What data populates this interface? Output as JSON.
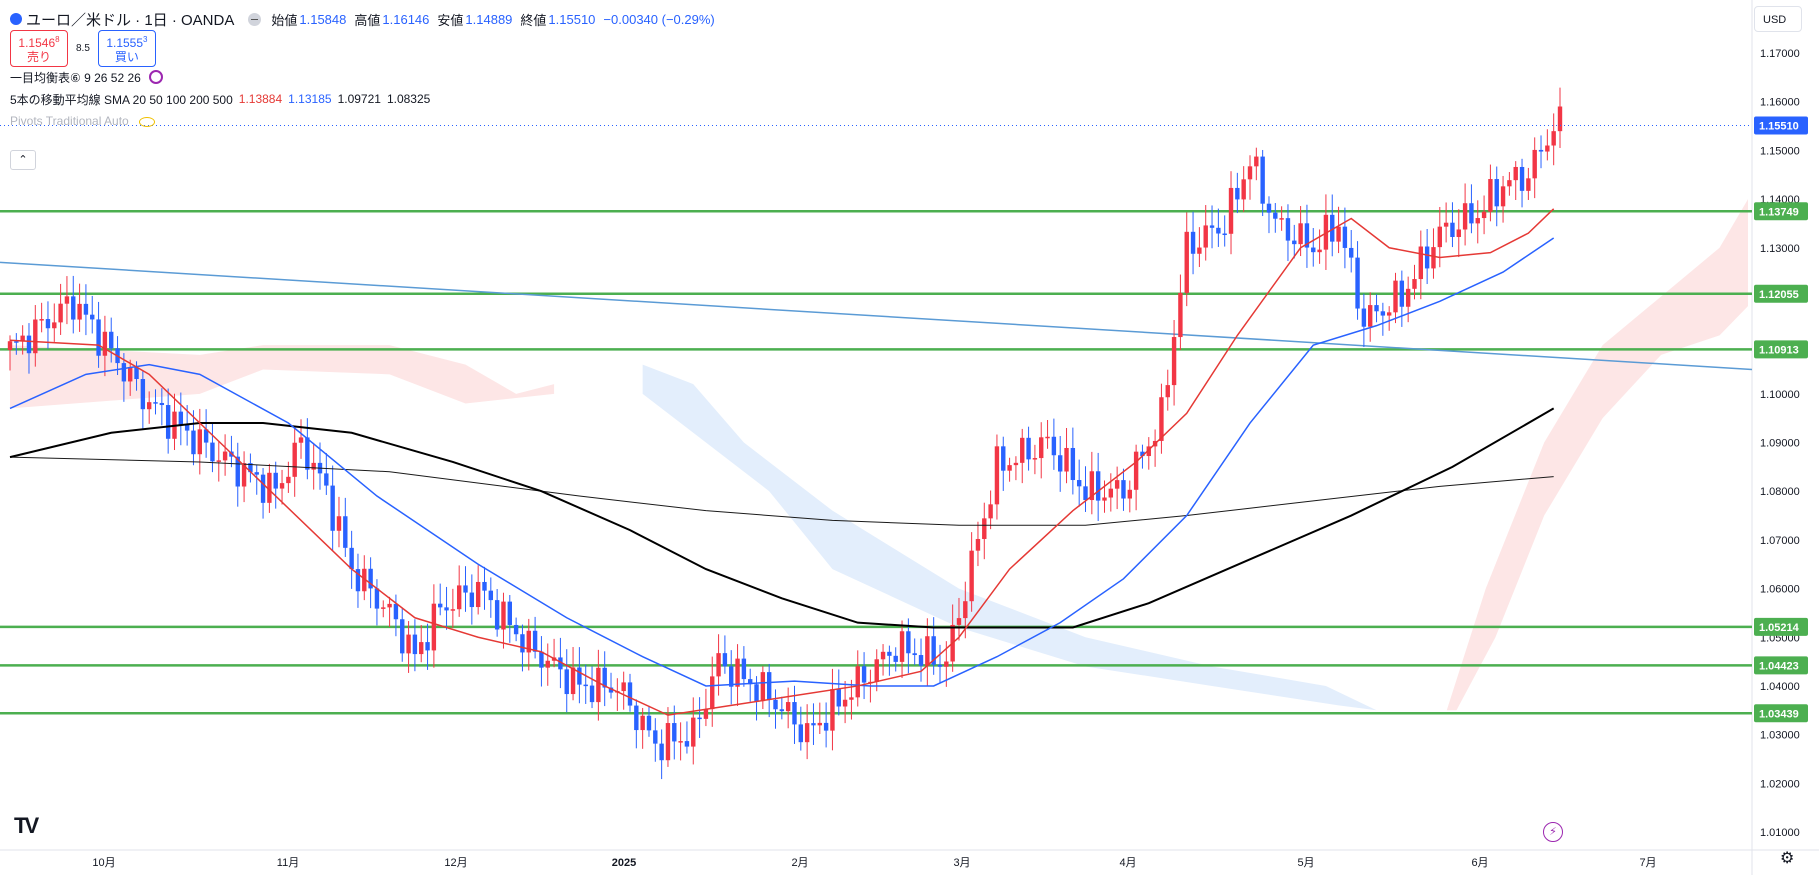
{
  "header": {
    "title": "ユーロ／米ドル · 1日 · OANDA",
    "ohlc": [
      {
        "label": "始値",
        "value": "1.15848"
      },
      {
        "label": "高値",
        "value": "1.16146"
      },
      {
        "label": "安値",
        "value": "1.14889"
      },
      {
        "label": "終値",
        "value": "1.15510"
      }
    ],
    "change": "−0.00340 (−0.29%)",
    "sell_price": "1.1546",
    "sell_price_sup": "8",
    "sell_label": "売り",
    "spread": "8.5",
    "buy_price": "1.1555",
    "buy_price_sup": "3",
    "buy_label": "買い"
  },
  "indicators": {
    "ichimoku": "一目均衡表⑥ 9 26 52 26",
    "sma_label": "5本の移動平均線 SMA 20 50 100 200 500",
    "sma_values": [
      "1.13884",
      "1.13185",
      "1.09721",
      "1.08325"
    ],
    "pivots": "Pivots Traditional Auto"
  },
  "currency_button": "USD",
  "collapse_glyph": "⌃",
  "logo_text": "TV",
  "colors": {
    "up": "#f23645",
    "down": "#2962ff",
    "hline": "#4caf50",
    "sma20": "#e53935",
    "sma50": "#2962ff",
    "sma100": "#000000",
    "sma200": "#1a1a1a",
    "trend": "#5b9bd5",
    "cloud_bull": "#fde6e6",
    "cloud_bear": "#e3eefc"
  },
  "chart_data": {
    "type": "candlestick",
    "y_axis": {
      "min": 1.0,
      "max": 1.18,
      "ticks": [
        "1.01000",
        "1.02000",
        "1.03000",
        "1.04000",
        "1.05000",
        "1.06000",
        "1.07000",
        "1.08000",
        "1.09000",
        "1.10000",
        "1.11000",
        "1.12000",
        "1.13000",
        "1.14000",
        "1.15000",
        "1.16000",
        "1.17000"
      ]
    },
    "x_axis": {
      "labels": [
        "10月",
        "11月",
        "12月",
        "2025",
        "2月",
        "3月",
        "4月",
        "5月",
        "6月",
        "7月"
      ]
    },
    "last_price": "1.15510",
    "horizontal_levels": [
      {
        "price": 1.13749,
        "label": "1.13749"
      },
      {
        "price": 1.12055,
        "label": "1.12055"
      },
      {
        "price": 1.10913,
        "label": "1.10913"
      },
      {
        "price": 1.05214,
        "label": "1.05214"
      },
      {
        "price": 1.04423,
        "label": "1.04423"
      },
      {
        "price": 1.03439,
        "label": "1.03439"
      }
    ],
    "candle_anchors": [
      {
        "i": 0,
        "p": 1.109
      },
      {
        "i": 10,
        "p": 1.119
      },
      {
        "i": 14,
        "p": 1.112
      },
      {
        "i": 22,
        "p": 1.098
      },
      {
        "i": 32,
        "p": 1.088
      },
      {
        "i": 42,
        "p": 1.08
      },
      {
        "i": 46,
        "p": 1.09
      },
      {
        "i": 50,
        "p": 1.08
      },
      {
        "i": 54,
        "p": 1.064
      },
      {
        "i": 60,
        "p": 1.055
      },
      {
        "i": 64,
        "p": 1.046
      },
      {
        "i": 68,
        "p": 1.056
      },
      {
        "i": 74,
        "p": 1.06
      },
      {
        "i": 82,
        "p": 1.048
      },
      {
        "i": 90,
        "p": 1.04
      },
      {
        "i": 96,
        "p": 1.04
      },
      {
        "i": 102,
        "p": 1.028
      },
      {
        "i": 108,
        "p": 1.03
      },
      {
        "i": 112,
        "p": 1.045
      },
      {
        "i": 120,
        "p": 1.038
      },
      {
        "i": 126,
        "p": 1.03
      },
      {
        "i": 132,
        "p": 1.038
      },
      {
        "i": 140,
        "p": 1.048
      },
      {
        "i": 148,
        "p": 1.045
      },
      {
        "i": 152,
        "p": 1.065
      },
      {
        "i": 156,
        "p": 1.085
      },
      {
        "i": 164,
        "p": 1.09
      },
      {
        "i": 170,
        "p": 1.08
      },
      {
        "i": 176,
        "p": 1.08
      },
      {
        "i": 182,
        "p": 1.095
      },
      {
        "i": 186,
        "p": 1.13
      },
      {
        "i": 192,
        "p": 1.135
      },
      {
        "i": 196,
        "p": 1.148
      },
      {
        "i": 200,
        "p": 1.135
      },
      {
        "i": 206,
        "p": 1.13
      },
      {
        "i": 210,
        "p": 1.135
      },
      {
        "i": 214,
        "p": 1.115
      },
      {
        "i": 220,
        "p": 1.12
      },
      {
        "i": 226,
        "p": 1.133
      },
      {
        "i": 232,
        "p": 1.137
      },
      {
        "i": 236,
        "p": 1.143
      },
      {
        "i": 240,
        "p": 1.145
      },
      {
        "i": 244,
        "p": 1.155
      }
    ],
    "sma20": [
      [
        0,
        1.111
      ],
      [
        14,
        1.11
      ],
      [
        22,
        1.104
      ],
      [
        34,
        1.089
      ],
      [
        54,
        1.064
      ],
      [
        64,
        1.054
      ],
      [
        74,
        1.05
      ],
      [
        84,
        1.047
      ],
      [
        94,
        1.04
      ],
      [
        104,
        1.034
      ],
      [
        114,
        1.036
      ],
      [
        124,
        1.038
      ],
      [
        134,
        1.04
      ],
      [
        144,
        1.043
      ],
      [
        150,
        1.05
      ],
      [
        158,
        1.064
      ],
      [
        168,
        1.076
      ],
      [
        178,
        1.086
      ],
      [
        186,
        1.096
      ],
      [
        194,
        1.112
      ],
      [
        204,
        1.13
      ],
      [
        212,
        1.136
      ],
      [
        218,
        1.13
      ],
      [
        226,
        1.128
      ],
      [
        234,
        1.129
      ],
      [
        240,
        1.133
      ],
      [
        244,
        1.138
      ]
    ],
    "sma50": [
      [
        0,
        1.097
      ],
      [
        12,
        1.104
      ],
      [
        22,
        1.106
      ],
      [
        30,
        1.104
      ],
      [
        44,
        1.094
      ],
      [
        58,
        1.079
      ],
      [
        74,
        1.065
      ],
      [
        88,
        1.054
      ],
      [
        100,
        1.046
      ],
      [
        110,
        1.04
      ],
      [
        124,
        1.041
      ],
      [
        136,
        1.04
      ],
      [
        146,
        1.04
      ],
      [
        156,
        1.046
      ],
      [
        166,
        1.053
      ],
      [
        176,
        1.062
      ],
      [
        186,
        1.075
      ],
      [
        196,
        1.094
      ],
      [
        206,
        1.11
      ],
      [
        216,
        1.114
      ],
      [
        226,
        1.119
      ],
      [
        236,
        1.125
      ],
      [
        244,
        1.132
      ]
    ],
    "sma100": [
      [
        0,
        1.087
      ],
      [
        16,
        1.092
      ],
      [
        30,
        1.094
      ],
      [
        40,
        1.094
      ],
      [
        54,
        1.092
      ],
      [
        70,
        1.086
      ],
      [
        84,
        1.08
      ],
      [
        98,
        1.072
      ],
      [
        110,
        1.064
      ],
      [
        122,
        1.058
      ],
      [
        134,
        1.053
      ],
      [
        146,
        1.052
      ],
      [
        156,
        1.052
      ],
      [
        168,
        1.052
      ],
      [
        180,
        1.057
      ],
      [
        196,
        1.066
      ],
      [
        212,
        1.075
      ],
      [
        228,
        1.085
      ],
      [
        244,
        1.097
      ]
    ],
    "sma200": [
      [
        0,
        1.087
      ],
      [
        30,
        1.086
      ],
      [
        60,
        1.084
      ],
      [
        90,
        1.079
      ],
      [
        110,
        1.076
      ],
      [
        130,
        1.074
      ],
      [
        150,
        1.073
      ],
      [
        170,
        1.073
      ],
      [
        186,
        1.075
      ],
      [
        206,
        1.078
      ],
      [
        226,
        1.081
      ],
      [
        244,
        1.083
      ]
    ],
    "trendline": [
      [
        1.127,
        0
      ],
      [
        1.105,
        1
      ]
    ]
  }
}
